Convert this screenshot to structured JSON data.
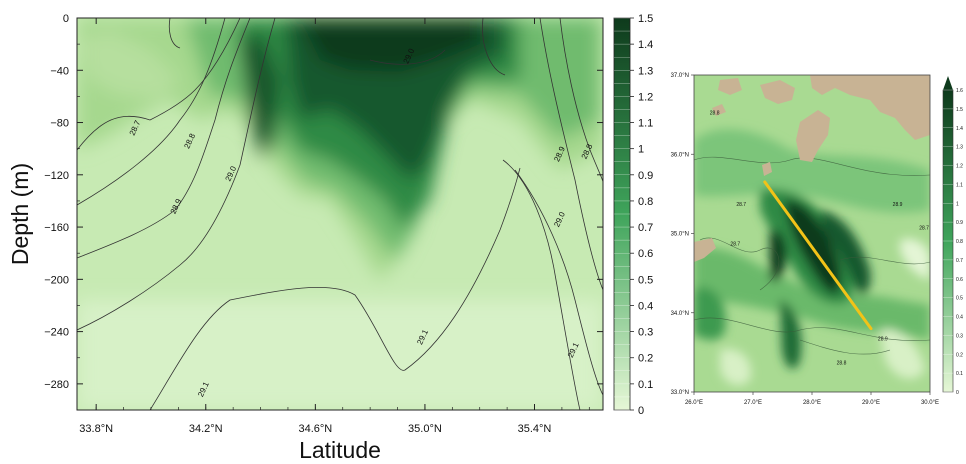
{
  "chart_data": [
    {
      "type": "heatmap",
      "title": "",
      "xlabel": "Latitude",
      "ylabel": "Depth (m)",
      "xlim": [
        33.73,
        35.65
      ],
      "ylim": [
        -300,
        0
      ],
      "x_ticks": [
        "33.8°N",
        "34.2°N",
        "34.6°N",
        "35.0°N",
        "35.4°N"
      ],
      "x_tick_values": [
        33.8,
        34.2,
        34.6,
        35.0,
        35.4
      ],
      "y_ticks": [
        "0",
        "−40",
        "−80",
        "−120",
        "−160",
        "−200",
        "−240",
        "−280"
      ],
      "y_tick_values": [
        0,
        -40,
        -80,
        -120,
        -160,
        -200,
        -240,
        -280
      ],
      "colorbar": {
        "min": 0,
        "max": 1.5,
        "step": 0.05,
        "tick_labels": [
          "0",
          "0.1",
          "0.2",
          "0.3",
          "0.4",
          "0.5",
          "0.6",
          "0.7",
          "0.8",
          "0.9",
          "1",
          "1.1",
          "1.2",
          "1.3",
          "1.4",
          "1.5"
        ],
        "tick_values": [
          0,
          0.1,
          0.2,
          0.3,
          0.4,
          0.5,
          0.6,
          0.7,
          0.8,
          0.9,
          1.0,
          1.1,
          1.2,
          1.3,
          1.4,
          1.5
        ],
        "color_low": "#e6f7d6",
        "color_mid": "#3fa45b",
        "color_high": "#0e3a1c"
      },
      "contour_labels": [
        {
          "text": "28.7",
          "lat": 33.95,
          "depth": -85
        },
        {
          "text": "28.8",
          "lat": 34.15,
          "depth": -95
        },
        {
          "text": "29.0",
          "lat": 34.3,
          "depth": -120
        },
        {
          "text": "28.9",
          "lat": 34.1,
          "depth": -145
        },
        {
          "text": "29.1",
          "lat": 34.2,
          "depth": -285
        },
        {
          "text": "29.0",
          "lat": 34.95,
          "depth": -30
        },
        {
          "text": "29.1",
          "lat": 35.0,
          "depth": -245
        },
        {
          "text": "28.9",
          "lat": 35.5,
          "depth": -105
        },
        {
          "text": "28.8",
          "lat": 35.6,
          "depth": -103
        },
        {
          "text": "29.0",
          "lat": 35.5,
          "depth": -155
        },
        {
          "text": "29.1",
          "lat": 35.55,
          "depth": -255
        }
      ]
    },
    {
      "type": "heatmap",
      "title": "",
      "xlabel": "",
      "ylabel": "",
      "xlim": [
        26.0,
        30.0
      ],
      "ylim": [
        33.0,
        37.0
      ],
      "x_ticks": [
        "26.0°E",
        "27.0°E",
        "28.0°E",
        "29.0°E",
        "30.0°E"
      ],
      "x_tick_values": [
        26.0,
        27.0,
        28.0,
        29.0,
        30.0
      ],
      "y_ticks": [
        "33.0°N",
        "34.0°N",
        "35.0°N",
        "36.0°N",
        "37.0°N"
      ],
      "y_tick_values": [
        33.0,
        34.0,
        35.0,
        36.0,
        37.0
      ],
      "transect": {
        "from": [
          27.2,
          35.65
        ],
        "to": [
          29.0,
          33.8
        ],
        "color": "#f2c318"
      },
      "land_color": "#c8b394",
      "colorbar": {
        "min": 0,
        "max": 1.6,
        "step": 0.1,
        "tick_labels": [
          "0",
          "0.1",
          "0.2",
          "0.3",
          "0.4",
          "0.5",
          "0.6",
          "0.7",
          "0.8",
          "0.9",
          "1",
          "1.1",
          "1.2",
          "1.3",
          "1.4",
          "1.5",
          "1.6"
        ],
        "tick_values": [
          0,
          0.1,
          0.2,
          0.3,
          0.4,
          0.5,
          0.6,
          0.7,
          0.8,
          0.9,
          1.0,
          1.1,
          1.2,
          1.3,
          1.4,
          1.5,
          1.6
        ],
        "color_low": "#e6f7d6",
        "color_mid": "#3fa45b",
        "color_high": "#0e3a1c"
      },
      "contour_labels": [
        {
          "text": "28.8",
          "lon": 26.35,
          "lat": 36.5
        },
        {
          "text": "28.7",
          "lon": 26.8,
          "lat": 35.35
        },
        {
          "text": "28.9",
          "lon": 29.45,
          "lat": 35.35
        },
        {
          "text": "28.7",
          "lon": 29.9,
          "lat": 35.05
        },
        {
          "text": "28.7",
          "lon": 26.7,
          "lat": 34.85
        },
        {
          "text": "28.9",
          "lon": 29.2,
          "lat": 33.65
        },
        {
          "text": "28.8",
          "lon": 28.5,
          "lat": 33.35
        }
      ]
    }
  ]
}
